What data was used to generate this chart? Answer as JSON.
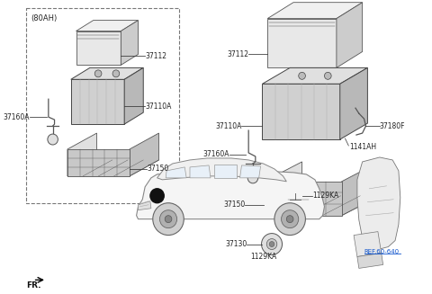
{
  "background_color": "#ffffff",
  "dashed_box_label": "(80AH)",
  "parts": {
    "left_37112": "37112",
    "left_37110A": "37110A",
    "left_37160A": "37160A",
    "left_37150": "37150",
    "right_37112": "37112",
    "right_37110A": "37110A",
    "right_37160A": "37160A",
    "right_37150": "37150",
    "right_1141AH": "1141AH",
    "right_37180F": "37180F",
    "right_1129KA_top": "1129KA",
    "right_37130": "37130",
    "right_1129KA_bot": "1129KA",
    "ref": "REF.60-640",
    "fr": "FR."
  },
  "colors": {
    "light_gray": "#e8e8e8",
    "mid_gray": "#d4d4d4",
    "dark_gray": "#555555",
    "edge": "#444444",
    "line": "#333333",
    "bg": "#ffffff",
    "blue_ref": "#1155cc"
  }
}
